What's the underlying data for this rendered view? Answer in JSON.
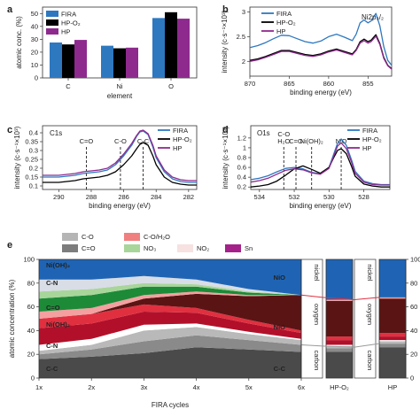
{
  "panel_labels": [
    "a",
    "b",
    "c",
    "d",
    "e"
  ],
  "colors": {
    "FIRA": "#2e78c0",
    "HP-O2": "#000000",
    "HP": "#8e2a8e"
  },
  "chart_data": [
    {
      "id": "a",
      "type": "bar",
      "categories": [
        "C",
        "Ni",
        "O"
      ],
      "series": [
        {
          "name": "FIRA",
          "values": [
            27.5,
            25,
            46.5
          ]
        },
        {
          "name": "HP-O₂",
          "values": [
            26,
            23,
            51
          ]
        },
        {
          "name": "HP",
          "values": [
            29.5,
            23.5,
            46
          ]
        }
      ],
      "xlabel": "element",
      "ylabel": "atomic conc. (%)",
      "ylim": [
        0,
        55
      ],
      "yticks": [
        0,
        10,
        20,
        30,
        40,
        50
      ],
      "legend": "top-left"
    },
    {
      "id": "b",
      "type": "line",
      "annotation": "Ni2p₃/₂",
      "xlabel": "binding energy (eV)",
      "ylabel": "intensity (c·s⁻¹×10³)",
      "xlim": [
        870,
        852
      ],
      "xticks": [
        870,
        865,
        860,
        855
      ],
      "ylim": [
        1.7,
        3.1
      ],
      "yticks": [
        2.0,
        2.5,
        3.0
      ],
      "legend": "top-right",
      "x": [
        870,
        869,
        868,
        867,
        866,
        865,
        864,
        863,
        862,
        861,
        860,
        859,
        858,
        857,
        856.5,
        856,
        855.5,
        855,
        854.6,
        854,
        853.5,
        853,
        852.5,
        852
      ],
      "series": [
        {
          "name": "FIRA",
          "values": [
            2.28,
            2.32,
            2.38,
            2.46,
            2.53,
            2.52,
            2.46,
            2.4,
            2.37,
            2.41,
            2.5,
            2.55,
            2.49,
            2.42,
            2.55,
            2.78,
            2.84,
            2.78,
            2.82,
            2.97,
            2.72,
            2.3,
            2.02,
            1.92
          ]
        },
        {
          "name": "HP-O₂",
          "values": [
            2.02,
            2.05,
            2.1,
            2.16,
            2.22,
            2.22,
            2.18,
            2.14,
            2.12,
            2.15,
            2.21,
            2.25,
            2.2,
            2.15,
            2.24,
            2.4,
            2.45,
            2.4,
            2.43,
            2.54,
            2.36,
            2.08,
            1.92,
            1.85
          ]
        },
        {
          "name": "HP",
          "values": [
            2.0,
            2.03,
            2.08,
            2.14,
            2.2,
            2.2,
            2.16,
            2.12,
            2.1,
            2.13,
            2.19,
            2.23,
            2.18,
            2.13,
            2.22,
            2.37,
            2.42,
            2.37,
            2.4,
            2.51,
            2.34,
            2.06,
            1.91,
            1.84
          ]
        }
      ]
    },
    {
      "id": "c",
      "type": "line",
      "annotation": "C1s",
      "peak_labels": [
        "C=O",
        "C-O",
        "C-C"
      ],
      "peak_positions": [
        288.3,
        286.2,
        284.8
      ],
      "xlabel": "binding energy (eV)",
      "ylabel": "intensity (c·s⁻¹×10³)",
      "xlim": [
        291,
        281.5
      ],
      "xticks": [
        290,
        288,
        286,
        284,
        282
      ],
      "ylim": [
        0.08,
        0.44
      ],
      "yticks": [
        0.1,
        0.15,
        0.2,
        0.25,
        0.3,
        0.35,
        0.4
      ],
      "legend": "top-right",
      "x": [
        291,
        290,
        289.5,
        289,
        288.5,
        288,
        287.5,
        287,
        286.5,
        286,
        285.5,
        285.2,
        285,
        284.8,
        284.5,
        284.2,
        284,
        283.5,
        283,
        282.5,
        282,
        281.5
      ],
      "series": [
        {
          "name": "FIRA",
          "values": [
            0.15,
            0.15,
            0.155,
            0.16,
            0.17,
            0.175,
            0.18,
            0.19,
            0.22,
            0.27,
            0.33,
            0.38,
            0.405,
            0.41,
            0.39,
            0.32,
            0.26,
            0.18,
            0.14,
            0.125,
            0.12,
            0.12
          ]
        },
        {
          "name": "HP-O₂",
          "values": [
            0.12,
            0.12,
            0.125,
            0.13,
            0.14,
            0.145,
            0.15,
            0.16,
            0.18,
            0.22,
            0.27,
            0.31,
            0.335,
            0.345,
            0.33,
            0.27,
            0.22,
            0.15,
            0.12,
            0.11,
            0.105,
            0.105
          ]
        },
        {
          "name": "HP",
          "values": [
            0.16,
            0.16,
            0.165,
            0.17,
            0.18,
            0.185,
            0.19,
            0.2,
            0.23,
            0.28,
            0.34,
            0.385,
            0.41,
            0.415,
            0.395,
            0.33,
            0.27,
            0.19,
            0.15,
            0.135,
            0.13,
            0.13
          ]
        }
      ]
    },
    {
      "id": "d",
      "type": "line",
      "annotation": "O1s",
      "peak_labels": [
        "C-O\nH₂O",
        "C=O",
        "Ni(OH)₂",
        "NiO"
      ],
      "peak_positions": [
        532.6,
        531.9,
        531.0,
        529.3
      ],
      "xlabel": "binding energy (eV)",
      "ylabel": "intensity (c·s⁻¹×10³)",
      "xlim": [
        534.5,
        526.5
      ],
      "xticks": [
        534,
        532,
        530,
        528
      ],
      "ylim": [
        0.15,
        1.45
      ],
      "yticks": [
        0.2,
        0.4,
        0.6,
        0.8,
        1.0,
        1.2
      ],
      "legend": "top-right",
      "x": [
        534.5,
        534,
        533.5,
        533,
        532.5,
        532,
        531.5,
        531,
        530.5,
        530,
        529.7,
        529.5,
        529.3,
        529,
        528.7,
        528.5,
        528,
        527.5,
        527,
        526.5
      ],
      "series": [
        {
          "name": "FIRA",
          "values": [
            0.35,
            0.38,
            0.43,
            0.51,
            0.58,
            0.6,
            0.57,
            0.5,
            0.47,
            0.6,
            0.9,
            1.1,
            1.18,
            1.05,
            0.75,
            0.52,
            0.32,
            0.27,
            0.25,
            0.25
          ]
        },
        {
          "name": "HP-O₂",
          "values": [
            0.2,
            0.22,
            0.25,
            0.32,
            0.44,
            0.57,
            0.63,
            0.56,
            0.48,
            0.6,
            0.82,
            0.95,
            0.98,
            0.88,
            0.62,
            0.42,
            0.26,
            0.22,
            0.2,
            0.2
          ]
        },
        {
          "name": "HP",
          "values": [
            0.3,
            0.33,
            0.38,
            0.46,
            0.54,
            0.57,
            0.55,
            0.49,
            0.46,
            0.58,
            0.86,
            1.04,
            1.1,
            0.98,
            0.7,
            0.48,
            0.3,
            0.25,
            0.24,
            0.24
          ]
        }
      ]
    },
    {
      "id": "e",
      "type": "area",
      "xlabel": "FIRA cycles",
      "ylabel": "atomic concentration (%)",
      "categories": [
        "1x",
        "2x",
        "3x",
        "4x",
        "5x",
        "6x"
      ],
      "extra_categories": [
        "HP-O₂",
        "HP"
      ],
      "ylim": [
        0,
        100
      ],
      "yticks": [
        0,
        20,
        40,
        60,
        80,
        100
      ],
      "legend": "top",
      "legend_items": [
        {
          "name": "C-O",
          "color": "#b5b5b5"
        },
        {
          "name": "C-O/H₂O",
          "color": "#f08080"
        },
        {
          "name": "C=O",
          "color": "#7d7d7d"
        },
        {
          "name": "NO₃",
          "color": "#a8d59a"
        },
        {
          "name": "NO₂",
          "color": "#f7e1e1"
        },
        {
          "name": "Sn",
          "color": "#a5218a"
        }
      ],
      "layer_labels_left": [
        "C-C",
        "C-N",
        "Ni(OH)₂",
        "C=O",
        "C-N",
        "Ni(OH)₂"
      ],
      "layer_labels_right": [
        "C-C",
        "NiO",
        "NiO"
      ],
      "group_labels": [
        "carbon",
        "oxygen",
        "nickel"
      ],
      "series": [
        {
          "name": "C-C",
          "color": "#4a4a4a",
          "values": [
            16,
            18,
            21,
            26,
            24,
            22
          ]
        },
        {
          "name": "C=O",
          "color": "#8a8a8a",
          "values": [
            4,
            6,
            10,
            10,
            8,
            6
          ]
        },
        {
          "name": "C-O",
          "color": "#b9b9b9",
          "values": [
            3,
            4,
            9,
            7,
            5,
            4
          ]
        },
        {
          "name": "C-N",
          "color": "#ffffff",
          "values": [
            5,
            5,
            5,
            3,
            2,
            1
          ]
        },
        {
          "name": "Ni(OH)₂",
          "color": "#b2102a",
          "values": [
            14,
            13,
            11,
            9,
            7,
            5
          ]
        },
        {
          "name": "C=O (oxygen)",
          "color": "#e03040",
          "values": [
            8,
            8,
            6,
            4,
            3,
            2
          ]
        },
        {
          "name": "NiO",
          "color": "#5a1414",
          "values": [
            0,
            0,
            5,
            12,
            20,
            30
          ]
        },
        {
          "name": "C-O/H₂O",
          "color": "#f4a0a0",
          "values": [
            6,
            5,
            3,
            2,
            1,
            0
          ]
        },
        {
          "name": "C-N (N1s)",
          "color": "#1d8a38",
          "values": [
            11,
            11,
            7,
            4,
            2,
            0
          ]
        },
        {
          "name": "NO₃",
          "color": "#a8d59a",
          "values": [
            6,
            5,
            3,
            2,
            1,
            0
          ]
        },
        {
          "name": "Ni(OH)₂ (Ni2p)",
          "color": "#d8dde6",
          "values": [
            10,
            8,
            6,
            4,
            2,
            0
          ]
        },
        {
          "name": "NiO (Ni2p)",
          "color": "#1f64b4",
          "values": [
            17,
            17,
            14,
            17,
            25,
            30
          ]
        }
      ],
      "bar_series": {
        "HP-O₂": [
          22,
          3,
          2,
          1,
          4,
          3,
          30,
          1,
          0,
          0,
          0,
          34
        ],
        "HP": [
          26,
          3,
          2,
          1,
          3,
          3,
          29,
          1,
          0,
          0,
          0,
          32
        ]
      }
    }
  ]
}
